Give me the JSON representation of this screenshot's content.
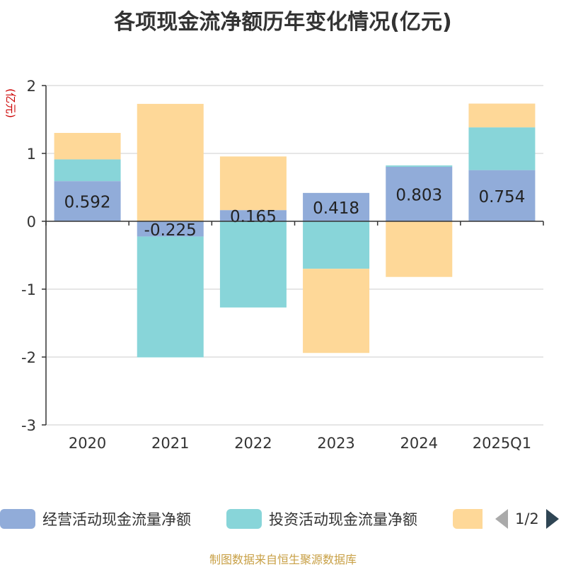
{
  "title": "各项现金流净额历年变化情况(亿元)",
  "source": "制图数据来自恒生聚源数据库",
  "pager": {
    "text": "1/2"
  },
  "chart_data": {
    "type": "bar",
    "stacked": true,
    "ylabel": "(亿元)",
    "ylim": [
      -3,
      2
    ],
    "yticks": [
      "2",
      "1",
      "0",
      "-1",
      "-2",
      "-3"
    ],
    "categories": [
      "2020",
      "2021",
      "2022",
      "2023",
      "2024",
      "2025Q1"
    ],
    "grid": true,
    "legend_position": "bottom",
    "series": [
      {
        "name": "经营活动现金流量净额",
        "color": "#91acd9",
        "values": [
          0.592,
          -0.225,
          0.165,
          0.418,
          0.803,
          0.754
        ],
        "labels": [
          "0.592",
          "-0.225",
          "0.165",
          "0.418",
          "0.803",
          "0.754"
        ]
      },
      {
        "name": "投资活动现金流量净额",
        "color": "#88d5d9",
        "values": [
          0.32,
          -1.78,
          -1.27,
          -0.7,
          0.02,
          0.63
        ]
      },
      {
        "name": "",
        "color": "#fed898",
        "values": [
          0.39,
          1.73,
          0.79,
          -1.24,
          -0.82,
          0.35
        ]
      }
    ]
  }
}
